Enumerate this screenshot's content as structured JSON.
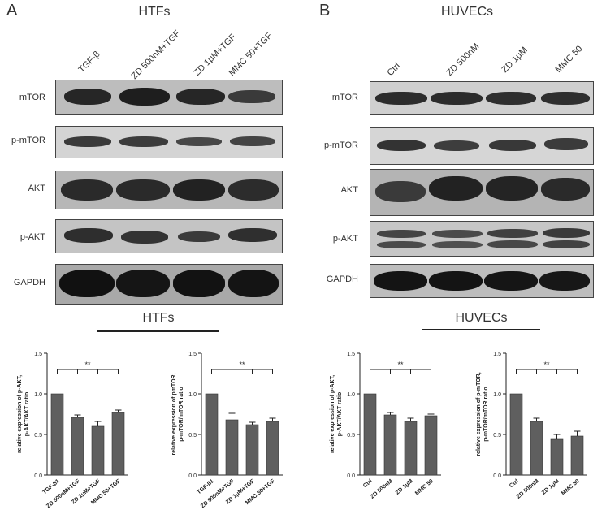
{
  "panels": [
    {
      "letter": "A",
      "title": "HTFs",
      "lanes": [
        "TGF-β",
        "ZD 500nM+TGF",
        "ZD 1μM+TGF",
        "MMC 50+TGF"
      ],
      "rows": [
        "mTOR",
        "p-mTOR",
        "AKT",
        "p-AKT",
        "GAPDH"
      ]
    },
    {
      "letter": "B",
      "title": "HUVECs",
      "lanes": [
        "Ctrl",
        "ZD 500nM",
        "ZD 1μM",
        "MMC 50"
      ],
      "rows": [
        "mTOR",
        "p-mTOR",
        "AKT",
        "p-AKT",
        "GAPDH"
      ]
    }
  ],
  "group_titles": {
    "htfs": "HTFs",
    "huvecs": "HUVECs"
  },
  "chart_data": [
    {
      "type": "bar",
      "group": "HTFs",
      "categories": [
        "TGF-β1",
        "ZD 500nM+TGF",
        "ZD 1μM+TGF",
        "MMC 50+TGF"
      ],
      "values": [
        1.0,
        0.71,
        0.6,
        0.77
      ],
      "errors": [
        0,
        0.03,
        0.06,
        0.03
      ],
      "ylabel": "relative expression of p-AKT,\np-AKT/AKT ratio",
      "ylim": [
        0,
        1.5
      ],
      "yticks": [
        "0.0",
        "0.5",
        "1.0",
        "1.5"
      ],
      "significance": "**"
    },
    {
      "type": "bar",
      "group": "HTFs",
      "categories": [
        "TGF-β1",
        "ZD 500nM+TGF",
        "ZD 1μM+TGF",
        "MMC 50+TGF"
      ],
      "values": [
        1.0,
        0.68,
        0.62,
        0.66
      ],
      "errors": [
        0,
        0.08,
        0.03,
        0.04
      ],
      "ylabel": "relative expression of pmTOR,\np-mTOR/mTOR ratio",
      "ylim": [
        0,
        1.5
      ],
      "yticks": [
        "0.0",
        "0.5",
        "1.0",
        "1.5"
      ],
      "significance": "**"
    },
    {
      "type": "bar",
      "group": "HUVECs",
      "categories": [
        "Ctrl",
        "ZD 500nM",
        "ZD 1μM",
        "MMC 50"
      ],
      "values": [
        1.0,
        0.74,
        0.66,
        0.73
      ],
      "errors": [
        0,
        0.03,
        0.04,
        0.02
      ],
      "ylabel": "relative expression of p-AKT,\np-AKT/AKT ratio",
      "ylim": [
        0,
        1.5
      ],
      "yticks": [
        "0.0",
        "0.5",
        "1.0",
        "1.5"
      ],
      "significance": "**"
    },
    {
      "type": "bar",
      "group": "HUVECs",
      "categories": [
        "Ctrl",
        "ZD 500nM",
        "ZD 1μM",
        "MMC 50"
      ],
      "values": [
        1.0,
        0.66,
        0.44,
        0.48
      ],
      "errors": [
        0,
        0.04,
        0.06,
        0.06
      ],
      "ylabel": "relative expression of p-mTOR,\np-mTOR/mTOR ratio",
      "ylim": [
        0,
        1.5
      ],
      "yticks": [
        "0.0",
        "0.5",
        "1.0",
        "1.5"
      ],
      "significance": "**"
    }
  ]
}
